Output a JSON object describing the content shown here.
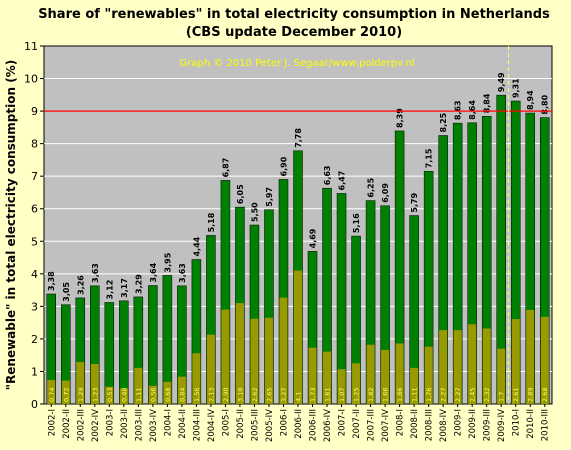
{
  "chart_data": {
    "type": "bar",
    "title": "Share of \"renewables\" in total electricity consumption in Netherlands",
    "subtitle": "(CBS update December 2010)",
    "credit": "Graph © 2010 Peter J. Segaar/www.polderpv.nl",
    "ylabel": "\"Renewable\" in total electricity consumption (%)",
    "xlabel": "",
    "ylim": [
      0,
      11
    ],
    "yticks": [
      "0",
      "1",
      "2",
      "3",
      "4",
      "5",
      "6",
      "7",
      "8",
      "9",
      "10",
      "11"
    ],
    "grid": true,
    "reference_line": {
      "value": 9,
      "color": "#ff0000"
    },
    "divider_after_category": "2009-IV",
    "categories": [
      "2002-I",
      "2002-II",
      "2002-III",
      "2002-IV",
      "2003-I",
      "2003-II",
      "2003-III",
      "2003-IV",
      "2004-I",
      "2004-II",
      "2004-III",
      "2004-IV",
      "2005-I",
      "2005-II",
      "2005-III",
      "2005-IV",
      "2006-I",
      "2006-II",
      "2006-III",
      "2006-IV",
      "2007-I",
      "2007-II",
      "2007-III",
      "2007-IV",
      "2008-I",
      "2008-II",
      "2008-III",
      "2008-IV",
      "2009-I",
      "2009-II",
      "2009-III",
      "2009-IV",
      "2010-I",
      "2010-II",
      "2010-III"
    ],
    "series": [
      {
        "color": "#008000",
        "values": [
          3.38,
          3.05,
          3.26,
          3.63,
          3.12,
          3.17,
          3.29,
          3.64,
          3.95,
          3.63,
          4.44,
          5.18,
          6.87,
          6.05,
          5.5,
          5.97,
          6.9,
          7.78,
          4.69,
          6.63,
          6.47,
          5.16,
          6.25,
          6.09,
          8.39,
          5.79,
          7.15,
          8.25,
          8.63,
          8.64,
          8.84,
          9.49,
          9.31,
          8.94,
          8.8
        ],
        "labels": [
          "3,38",
          "3,05",
          "3,26",
          "3,63",
          "3,12",
          "3,17",
          "3,29",
          "3,64",
          "3,95",
          "3,63",
          "4,44",
          "5,18",
          "6,87",
          "6,05",
          "5,50",
          "5,97",
          "6,90",
          "7,78",
          "4,69",
          "6,63",
          "6,47",
          "5,16",
          "6,25",
          "6,09",
          "8,39",
          "5,79",
          "7,15",
          "8,25",
          "8,63",
          "8,64",
          "8,84",
          "9,49",
          "9,31",
          "8,94",
          "8,80"
        ]
      },
      {
        "color": "#999900",
        "values": [
          0.74,
          0.72,
          1.29,
          1.23,
          0.53,
          0.48,
          1.11,
          0.56,
          0.68,
          0.84,
          1.56,
          2.13,
          2.9,
          3.1,
          2.62,
          2.65,
          3.27,
          4.1,
          1.73,
          1.61,
          1.07,
          1.25,
          1.82,
          1.66,
          1.86,
          1.11,
          1.76,
          2.27,
          2.27,
          2.45,
          2.32,
          1.7,
          2.61,
          2.89,
          2.68
        ],
        "labels": [
          "0,74",
          "0,72",
          "1,29",
          "1,23",
          "0,53",
          "0,48",
          "1,11",
          "0,56",
          "0,68",
          "0,84",
          "1,56",
          "2,13",
          "2,90",
          "3,10",
          "2,62",
          "2,65",
          "3,27",
          "4,1",
          "1,73",
          "1,61",
          "1,07",
          "1,25",
          "1,82",
          "1,66",
          "1,86",
          "1,11",
          "1,76",
          "2,27",
          "2,27",
          "2,45",
          "2,32",
          "1,7",
          "2,61",
          "2,89",
          "2,68"
        ]
      }
    ]
  }
}
